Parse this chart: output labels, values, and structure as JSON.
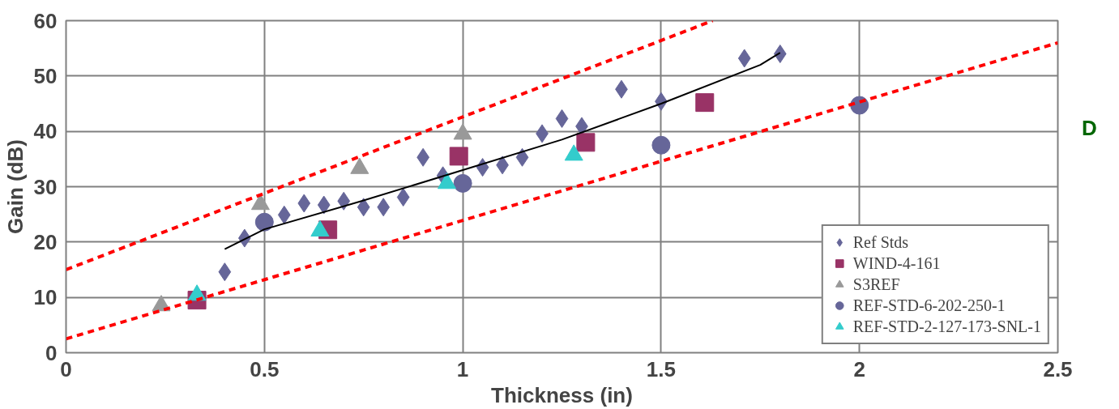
{
  "chart_data": {
    "type": "scatter",
    "xlabel": "Thickness (in)",
    "ylabel": "Gain (dB)",
    "xlim": [
      0,
      2.5
    ],
    "ylim": [
      0,
      60
    ],
    "xticks": [
      0,
      0.5,
      1,
      1.5,
      2,
      2.5
    ],
    "yticks": [
      0,
      10,
      20,
      30,
      40,
      50,
      60
    ],
    "grid": true,
    "legend": "bottom right",
    "annotations": [
      "D"
    ],
    "series": [
      {
        "name": "Ref Stds",
        "color": "#666699",
        "marker": "diamond",
        "x": [
          0.4,
          0.45,
          0.5,
          0.55,
          0.6,
          0.65,
          0.7,
          0.75,
          0.8,
          0.85,
          0.9,
          0.95,
          1.05,
          1.1,
          1.15,
          1.2,
          1.25,
          1.3,
          1.4,
          1.5,
          1.6,
          1.71,
          1.8
        ],
        "values": [
          14.6,
          20.7,
          null,
          24.9,
          27,
          26.7,
          27.4,
          26.3,
          26.3,
          28.1,
          35.3,
          32,
          33.5,
          33.9,
          35.3,
          39.6,
          42.3,
          40.9,
          47.6,
          45.4,
          null,
          53.2,
          54
        ]
      },
      {
        "name": "WIND-4-161",
        "color": "#993366",
        "marker": "square",
        "x": [
          0.33,
          0.66,
          0.99,
          1.31,
          1.61
        ],
        "values": [
          9.5,
          22.2,
          35.5,
          38,
          45.2
        ]
      },
      {
        "name": "S3REF",
        "color": "#999999",
        "marker": "triangle",
        "x": [
          0.24,
          0.49,
          0.74,
          1.0
        ],
        "values": [
          8.5,
          26.8,
          33.3,
          39.5
        ]
      },
      {
        "name": "REF-STD-6-202-250-1",
        "color": "#666699",
        "marker": "circle",
        "x": [
          0.5,
          1.0,
          1.5,
          2.0
        ],
        "values": [
          23.6,
          30.6,
          37.5,
          44.7
        ]
      },
      {
        "name": "REF-STD-2-127-173-SNL-1",
        "color": "#33cccc",
        "marker": "triangle",
        "x": [
          0.33,
          0.64,
          0.96,
          1.28
        ],
        "values": [
          10.4,
          22,
          30.6,
          35.7
        ]
      },
      {
        "type": "line",
        "color": "#000000",
        "line_style": "solid",
        "x": [
          0.4,
          0.5,
          0.75,
          1.0,
          1.25,
          1.5,
          1.75,
          1.8
        ],
        "values": [
          18.7,
          22.3,
          27.5,
          33,
          38.5,
          45,
          52,
          54.2
        ]
      },
      {
        "type": "line",
        "color": "#ff0000",
        "line_style": "dashed",
        "x": [
          0,
          1.63
        ],
        "values": [
          15,
          60
        ]
      },
      {
        "type": "line",
        "color": "#ff0000",
        "line_style": "dashed",
        "x": [
          0,
          2.5
        ],
        "values": [
          2.5,
          56
        ]
      }
    ]
  }
}
